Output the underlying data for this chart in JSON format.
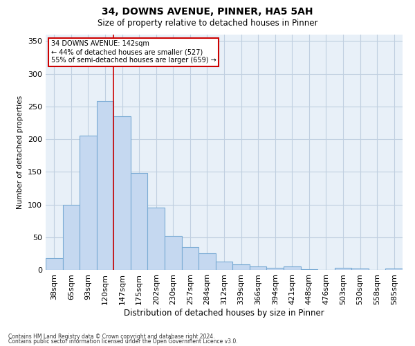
{
  "title1": "34, DOWNS AVENUE, PINNER, HA5 5AH",
  "title2": "Size of property relative to detached houses in Pinner",
  "xlabel": "Distribution of detached houses by size in Pinner",
  "ylabel": "Number of detached properties",
  "categories": [
    "38sqm",
    "65sqm",
    "93sqm",
    "120sqm",
    "147sqm",
    "175sqm",
    "202sqm",
    "230sqm",
    "257sqm",
    "284sqm",
    "312sqm",
    "339sqm",
    "366sqm",
    "394sqm",
    "421sqm",
    "448sqm",
    "476sqm",
    "503sqm",
    "530sqm",
    "558sqm",
    "585sqm"
  ],
  "values": [
    18,
    100,
    205,
    258,
    235,
    148,
    95,
    52,
    35,
    25,
    13,
    9,
    5,
    3,
    5,
    1,
    0,
    3,
    2,
    0,
    2
  ],
  "bar_color": "#c5d8f0",
  "bar_edge_color": "#7aabd4",
  "vline_x": 3.5,
  "vline_color": "#cc0000",
  "annotation_text": "34 DOWNS AVENUE: 142sqm\n← 44% of detached houses are smaller (527)\n55% of semi-detached houses are larger (659) →",
  "annotation_box_color": "#ffffff",
  "annotation_box_edge": "#cc0000",
  "ylim": [
    0,
    360
  ],
  "yticks": [
    0,
    50,
    100,
    150,
    200,
    250,
    300,
    350
  ],
  "grid_color": "#c0cfe0",
  "bg_color": "#e8f0f8",
  "footer1": "Contains HM Land Registry data © Crown copyright and database right 2024.",
  "footer2": "Contains public sector information licensed under the Open Government Licence v3.0."
}
